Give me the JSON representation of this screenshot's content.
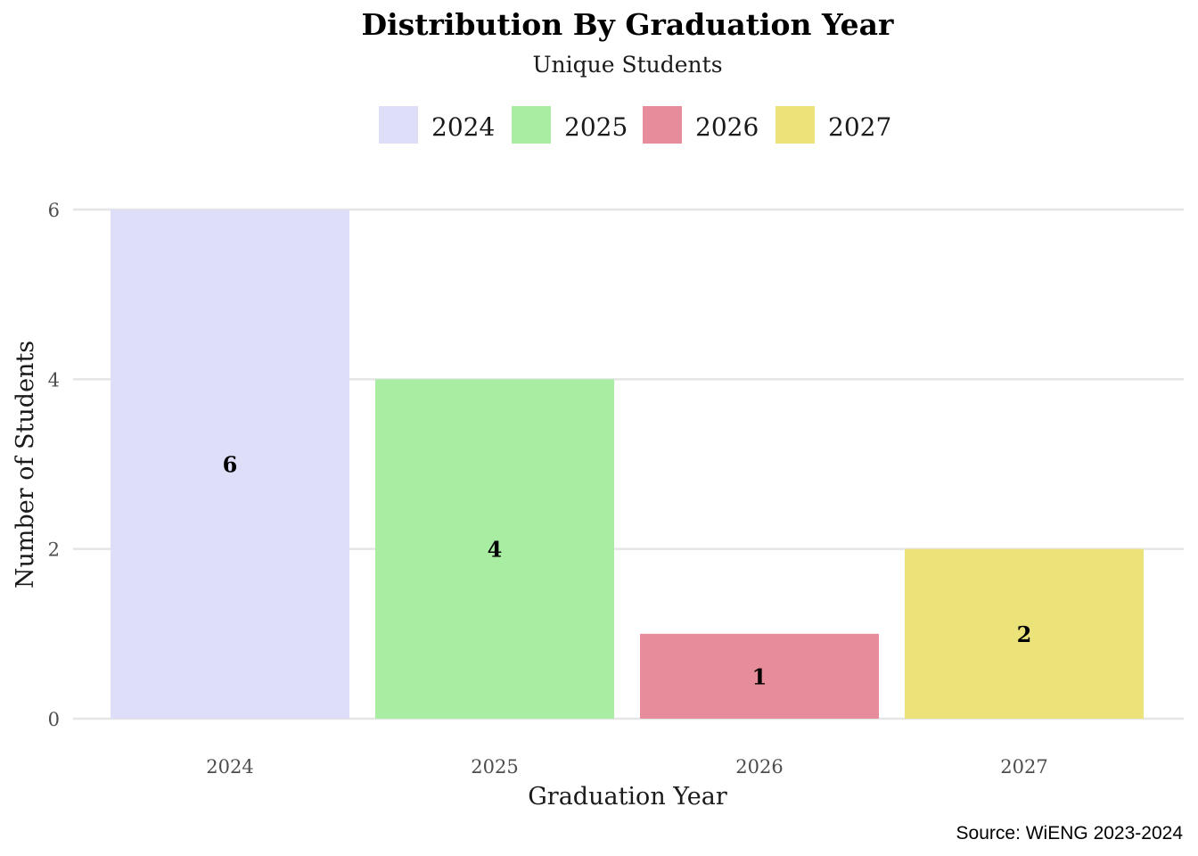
{
  "chart_data": {
    "type": "bar",
    "title": "Distribution By Graduation Year",
    "subtitle": "Unique Students",
    "xlabel": "Graduation Year",
    "ylabel": "Number of Students",
    "caption": "Source: WiENG 2023-2024",
    "categories": [
      "2024",
      "2025",
      "2026",
      "2027"
    ],
    "values": [
      6,
      4,
      1,
      2
    ],
    "colors": [
      "#dedef8",
      "#a8eda2",
      "#e78c9a",
      "#ece27a"
    ],
    "ylim": [
      0,
      6
    ],
    "yticks": [
      0,
      2,
      4,
      6
    ],
    "grid": true,
    "legend_position": "top",
    "legend": [
      "2024",
      "2025",
      "2026",
      "2027"
    ]
  }
}
